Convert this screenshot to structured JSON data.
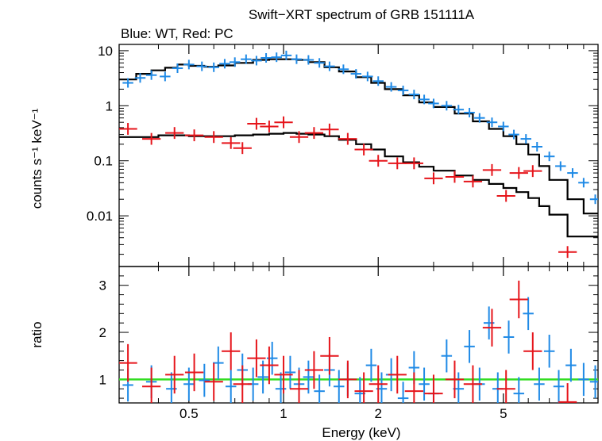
{
  "title": "Swift−XRT spectrum of GRB 151111A",
  "subtitle": "Blue: WT, Red: PC",
  "colors": {
    "wt": "#1f8ae6",
    "pc": "#e6151b",
    "model": "#000000",
    "unity": "#33dd22",
    "axes": "#000000"
  },
  "chart_data": [
    {
      "type": "scatter",
      "panel": "spectrum",
      "title": "Swift−XRT spectrum of GRB 151111A",
      "xlabel": "Energy (keV)",
      "ylabel": "counts s⁻¹ keV⁻¹",
      "xscale": "log",
      "yscale": "log",
      "xlim": [
        0.3,
        10
      ],
      "ylim": [
        0.0012,
        13
      ],
      "yticks": [
        0.01,
        0.1,
        1,
        10
      ],
      "ytick_labels": [
        "0.01",
        "0.1",
        "1",
        "10"
      ],
      "series": [
        {
          "name": "WT data",
          "color": "#1f8ae6",
          "x": [
            0.32,
            0.35,
            0.38,
            0.42,
            0.46,
            0.5,
            0.55,
            0.6,
            0.65,
            0.7,
            0.76,
            0.82,
            0.88,
            0.95,
            1.02,
            1.1,
            1.2,
            1.3,
            1.4,
            1.55,
            1.7,
            1.85,
            2.0,
            2.2,
            2.4,
            2.6,
            2.8,
            3.0,
            3.3,
            3.6,
            3.9,
            4.2,
            4.6,
            5.0,
            5.4,
            5.9,
            6.4,
            7.0,
            7.6,
            8.3,
            9.0,
            9.8
          ],
          "y": [
            2.6,
            3.2,
            3.6,
            3.4,
            4.8,
            5.6,
            5.2,
            5.0,
            5.8,
            6.2,
            7.0,
            6.6,
            7.4,
            7.6,
            8.2,
            7.0,
            6.8,
            6.0,
            5.2,
            4.6,
            3.8,
            3.4,
            2.8,
            2.2,
            1.9,
            1.6,
            1.3,
            1.1,
            1.0,
            0.85,
            0.75,
            0.6,
            0.5,
            0.42,
            0.3,
            0.25,
            0.18,
            0.12,
            0.08,
            0.06,
            0.04,
            0.02
          ]
        },
        {
          "name": "PC data",
          "color": "#e6151b",
          "x": [
            0.32,
            0.38,
            0.45,
            0.52,
            0.6,
            0.68,
            0.74,
            0.82,
            0.9,
            1.0,
            1.12,
            1.25,
            1.4,
            1.6,
            1.8,
            2.0,
            2.3,
            2.6,
            3.0,
            3.5,
            4.0,
            4.6,
            5.1,
            5.6,
            6.2,
            8.0
          ],
          "y": [
            0.38,
            0.25,
            0.32,
            0.29,
            0.27,
            0.21,
            0.17,
            0.47,
            0.42,
            0.5,
            0.27,
            0.32,
            0.37,
            0.25,
            0.16,
            0.1,
            0.09,
            0.09,
            0.048,
            0.051,
            0.042,
            0.068,
            0.023,
            0.06,
            0.065,
            0.0022
          ]
        },
        {
          "name": "Model",
          "color": "#000000",
          "x": [
            0.3,
            0.34,
            0.38,
            0.42,
            0.46,
            0.5,
            0.56,
            0.62,
            0.7,
            0.8,
            0.9,
            1.0,
            1.1,
            1.2,
            1.35,
            1.5,
            1.7,
            1.9,
            2.1,
            2.4,
            2.7,
            3.0,
            3.5,
            4.0,
            4.5,
            5.0,
            5.5,
            6.0,
            6.5,
            7.0,
            8.0,
            9.0,
            10.0
          ],
          "y": [
            3.0,
            3.8,
            4.4,
            4.9,
            5.6,
            5.3,
            5.1,
            5.4,
            6.0,
            6.8,
            7.0,
            7.0,
            6.8,
            6.2,
            5.0,
            4.2,
            3.3,
            2.6,
            2.0,
            1.55,
            1.15,
            0.95,
            0.72,
            0.52,
            0.38,
            0.28,
            0.2,
            0.13,
            0.08,
            0.045,
            0.02,
            0.011,
            0.01
          ]
        },
        {
          "name": "Model (PC)",
          "color": "#000000",
          "x": [
            0.3,
            0.4,
            0.5,
            0.6,
            0.7,
            0.8,
            0.9,
            1.0,
            1.1,
            1.2,
            1.35,
            1.5,
            1.7,
            1.9,
            2.1,
            2.4,
            2.7,
            3.0,
            3.5,
            4.0,
            4.5,
            5.0,
            5.5,
            6.0,
            6.5,
            7.0,
            8.0,
            9.0,
            10.0
          ],
          "y": [
            0.27,
            0.29,
            0.28,
            0.28,
            0.29,
            0.3,
            0.31,
            0.32,
            0.31,
            0.3,
            0.28,
            0.24,
            0.2,
            0.16,
            0.12,
            0.094,
            0.078,
            0.066,
            0.054,
            0.045,
            0.038,
            0.032,
            0.027,
            0.021,
            0.015,
            0.0105,
            0.0042,
            0.0042,
            0.0042
          ]
        }
      ]
    },
    {
      "type": "scatter",
      "panel": "ratio",
      "xlabel": "Energy (keV)",
      "ylabel": "ratio",
      "xscale": "log",
      "yscale": "linear",
      "xlim": [
        0.3,
        10
      ],
      "ylim": [
        0.5,
        3.4
      ],
      "xticks": [
        0.5,
        1,
        2,
        5
      ],
      "xtick_labels": [
        "0.5",
        "1",
        "2",
        "5"
      ],
      "yticks": [
        1,
        2,
        3
      ],
      "ytick_labels": [
        "1",
        "2",
        "3"
      ],
      "reference_line": 1.0,
      "series": [
        {
          "name": "WT ratio",
          "color": "#1f8ae6",
          "x": [
            0.32,
            0.38,
            0.44,
            0.5,
            0.56,
            0.62,
            0.68,
            0.74,
            0.8,
            0.86,
            0.92,
            0.98,
            1.05,
            1.12,
            1.2,
            1.3,
            1.4,
            1.5,
            1.6,
            1.75,
            1.9,
            2.05,
            2.2,
            2.4,
            2.6,
            2.8,
            3.0,
            3.3,
            3.6,
            3.9,
            4.2,
            4.5,
            4.8,
            5.2,
            5.6,
            6.0,
            6.5,
            7.0,
            7.5,
            8.2,
            9.0,
            9.8
          ],
          "y": [
            0.88,
            0.95,
            0.8,
            0.9,
            0.98,
            1.35,
            0.85,
            1.2,
            0.9,
            1.05,
            1.45,
            0.8,
            1.15,
            0.9,
            1.05,
            0.75,
            1.2,
            0.85,
            1.0,
            0.7,
            1.3,
            0.8,
            1.1,
            0.6,
            1.25,
            0.9,
            0.7,
            1.5,
            0.8,
            1.7,
            0.9,
            2.2,
            0.8,
            1.9,
            0.7,
            2.4,
            0.9,
            1.6,
            0.85,
            1.3,
            1.0,
            0.95
          ]
        },
        {
          "name": "PC ratio",
          "color": "#e6151b",
          "x": [
            0.32,
            0.38,
            0.45,
            0.52,
            0.6,
            0.68,
            0.74,
            0.82,
            0.9,
            1.0,
            1.12,
            1.25,
            1.4,
            1.6,
            1.8,
            2.0,
            2.3,
            2.6,
            3.0,
            3.5,
            4.0,
            4.6,
            5.1,
            5.6,
            6.2,
            8.0
          ],
          "y": [
            1.35,
            0.85,
            1.1,
            1.15,
            0.95,
            1.6,
            0.9,
            1.45,
            1.3,
            1.1,
            0.8,
            1.2,
            1.5,
            1.0,
            0.75,
            0.9,
            1.1,
            0.75,
            0.7,
            1.0,
            0.9,
            2.1,
            0.8,
            2.7,
            1.6,
            0.52
          ]
        }
      ]
    }
  ]
}
